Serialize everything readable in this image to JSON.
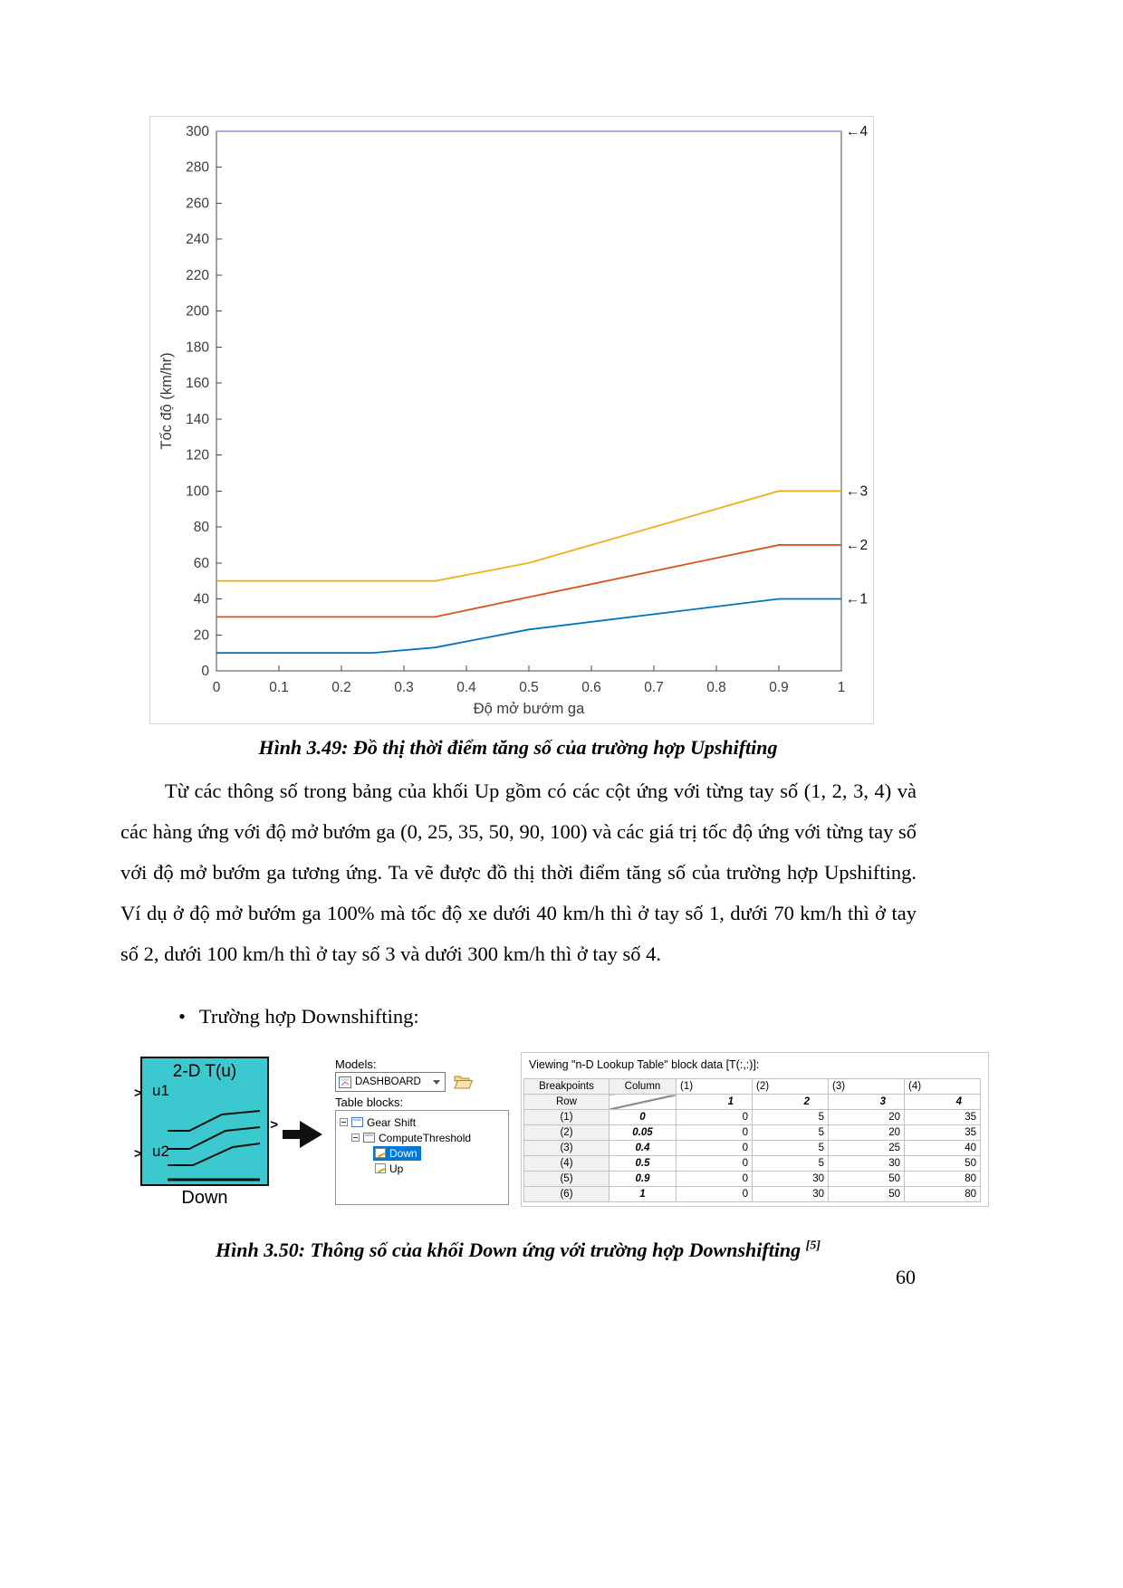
{
  "page_number": "60",
  "captions": {
    "fig349": "Hình 3.49: Đồ thị thời điểm tăng số của trường hợp Upshifting",
    "fig350": "Hình 3.50: Thông số của khối Down ứng với trường hợp Downshifting ",
    "fig350_sup": "[5]"
  },
  "paragraph": "Từ các thông số trong bảng của khối Up gồm có các cột ứng với từng tay số (1, 2, 3, 4) và các hàng ứng với độ mở bướm ga (0, 25, 35, 50, 90, 100) và các giá trị tốc độ ứng với từng tay số với độ mở bướm ga tương ứng. Ta vẽ được đồ thị thời điểm tăng số của trường hợp Upshifting.  Ví dụ ở độ mở bướm ga 100% mà tốc độ xe dưới 40 km/h thì ở tay số 1, dưới 70 km/h thì ở tay số 2, dưới 100 km/h thì ở tay số 3 và dưới 300 km/h thì ở tay số 4.",
  "bullet": {
    "marker": "•",
    "text": "Trường hợp Downshifting:"
  },
  "chart_data": {
    "type": "line",
    "title": "",
    "xlabel": "Độ mở bướm ga",
    "ylabel": "Tốc độ (km/hr)",
    "xlim": [
      0,
      1
    ],
    "ylim": [
      0,
      300
    ],
    "xticks": [
      0,
      0.1,
      0.2,
      0.3,
      0.4,
      0.5,
      0.6,
      0.7,
      0.8,
      0.9,
      1
    ],
    "yticks": [
      0,
      20,
      40,
      60,
      80,
      100,
      120,
      140,
      160,
      180,
      200,
      220,
      240,
      260,
      280,
      300
    ],
    "grid": false,
    "series": [
      {
        "name": "1",
        "color": "#0072BD",
        "annotation": "←1",
        "points": [
          [
            0,
            10
          ],
          [
            0.25,
            10
          ],
          [
            0.35,
            13
          ],
          [
            0.5,
            23
          ],
          [
            0.9,
            40
          ],
          [
            1,
            40
          ]
        ]
      },
      {
        "name": "2",
        "color": "#D95319",
        "annotation": "←2",
        "points": [
          [
            0,
            30
          ],
          [
            0.25,
            30
          ],
          [
            0.35,
            30
          ],
          [
            0.5,
            41
          ],
          [
            0.9,
            70
          ],
          [
            1,
            70
          ]
        ]
      },
      {
        "name": "3",
        "color": "#EDB120",
        "annotation": "←3",
        "points": [
          [
            0,
            50
          ],
          [
            0.25,
            50
          ],
          [
            0.35,
            50
          ],
          [
            0.5,
            60
          ],
          [
            0.9,
            100
          ],
          [
            1,
            100
          ]
        ]
      },
      {
        "name": "4",
        "color": "#AE9BD6",
        "annotation": "←4",
        "points": [
          [
            0,
            300
          ],
          [
            1,
            300
          ]
        ]
      }
    ]
  },
  "simulink": {
    "block": {
      "title": "2-D T(u)",
      "input1": "u1",
      "input2": "u2",
      "name": "Down",
      "port_marker": ">"
    },
    "models_label": "Models:",
    "model_dropdown": "DASHBOARD",
    "table_blocks_label": "Table blocks:",
    "tree": [
      {
        "label": "Gear Shift"
      },
      {
        "label": "ComputeThreshold"
      },
      {
        "label": "Down",
        "selected": true
      },
      {
        "label": "Up"
      }
    ],
    "viewer": {
      "title": "Viewing \"n-D Lookup Table\" block data [T(:,:)]:",
      "header1": [
        "Breakpoints",
        "Column",
        "(1)",
        "(2)",
        "(3)",
        "(4)"
      ],
      "header2": [
        "Row",
        "1",
        "2",
        "3",
        "4"
      ],
      "rows": [
        {
          "index": "(1)",
          "breakpoint": "0",
          "values": [
            "0",
            "5",
            "20",
            "35"
          ]
        },
        {
          "index": "(2)",
          "breakpoint": "0.05",
          "values": [
            "0",
            "5",
            "20",
            "35"
          ]
        },
        {
          "index": "(3)",
          "breakpoint": "0.4",
          "values": [
            "0",
            "5",
            "25",
            "40"
          ]
        },
        {
          "index": "(4)",
          "breakpoint": "0.5",
          "values": [
            "0",
            "5",
            "30",
            "50"
          ]
        },
        {
          "index": "(5)",
          "breakpoint": "0.9",
          "values": [
            "0",
            "30",
            "50",
            "80"
          ]
        },
        {
          "index": "(6)",
          "breakpoint": "1",
          "values": [
            "0",
            "30",
            "50",
            "80"
          ]
        }
      ]
    }
  }
}
